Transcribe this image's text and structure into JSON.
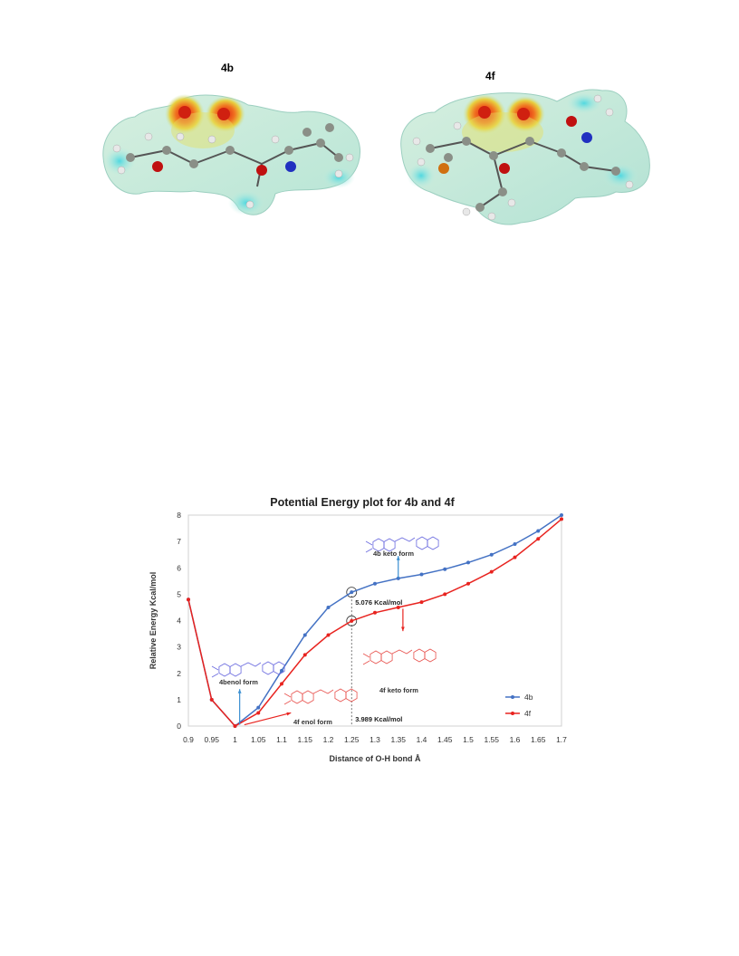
{
  "figure_top": {
    "label_left": "4b",
    "label_right": "4f"
  },
  "colors": {
    "series_4b": "#4472c4",
    "series_4f": "#e8231f",
    "annot_blue": "#3a8fd1",
    "struct_blue": "#6a6adf",
    "struct_red": "#e8534f"
  },
  "chart_data": {
    "type": "line",
    "title": "Potential Energy plot for 4b and 4f",
    "xlabel": "Distance of O-H bond Å",
    "ylabel": "Relative Energy Kcal/mol",
    "xlim": [
      0.9,
      1.7
    ],
    "ylim": [
      0,
      8
    ],
    "x_ticks": [
      "0.9",
      "0.95",
      "1",
      "1.05",
      "1.1",
      "1.15",
      "1.2",
      "1.25",
      "1.3",
      "1.35",
      "1.4",
      "1.45",
      "1.5",
      "1.55",
      "1.6",
      "1.65",
      "1.7"
    ],
    "y_ticks": [
      "0",
      "1",
      "2",
      "3",
      "4",
      "5",
      "6",
      "7",
      "8"
    ],
    "grid": false,
    "legend_position": "bottom-right",
    "series": [
      {
        "name": "4b",
        "x": [
          0.9,
          0.95,
          1.0,
          1.05,
          1.1,
          1.15,
          1.2,
          1.25,
          1.3,
          1.35,
          1.4,
          1.45,
          1.5,
          1.55,
          1.6,
          1.65,
          1.7
        ],
        "y": [
          4.8,
          1.0,
          0.0,
          0.7,
          2.1,
          3.45,
          4.5,
          5.076,
          5.4,
          5.6,
          5.75,
          5.95,
          6.2,
          6.5,
          6.9,
          7.4,
          8.0
        ]
      },
      {
        "name": "4f",
        "x": [
          0.9,
          0.95,
          1.0,
          1.05,
          1.1,
          1.15,
          1.2,
          1.25,
          1.3,
          1.35,
          1.4,
          1.45,
          1.5,
          1.55,
          1.6,
          1.65,
          1.7
        ],
        "y": [
          4.8,
          1.0,
          0.0,
          0.5,
          1.6,
          2.7,
          3.45,
          3.989,
          4.3,
          4.5,
          4.7,
          5.0,
          5.4,
          5.85,
          6.4,
          7.1,
          7.85
        ]
      }
    ],
    "annotations": {
      "ts_4b": "5.076 Kcal/mol",
      "ts_4f": "3.989 Kcal/mol",
      "enol_4b": "4benol form",
      "enol_4f": "4f enol form",
      "keto_4b": "4b keto form",
      "keto_4f": "4f keto form"
    }
  }
}
